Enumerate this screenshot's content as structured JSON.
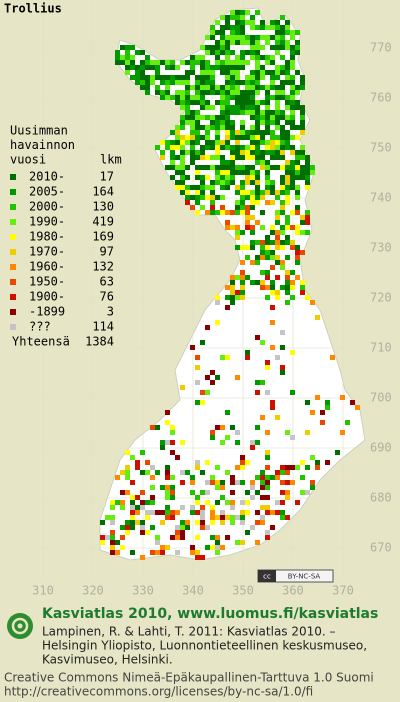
{
  "title": "Trollius",
  "legend": {
    "heading": [
      "Uusimman",
      "havainnon",
      "vuosi"
    ],
    "count_heading": "lkm",
    "entries": [
      {
        "label": "2010-",
        "count": 17,
        "color": "#006e00"
      },
      {
        "label": "2005-",
        "count": 164,
        "color": "#009a00"
      },
      {
        "label": "2000-",
        "count": 130,
        "color": "#22c400"
      },
      {
        "label": "1990-",
        "count": 419,
        "color": "#66ee11"
      },
      {
        "label": "1980-",
        "count": 169,
        "color": "#ffff00"
      },
      {
        "label": "1970-",
        "count": 97,
        "color": "#f0cc00"
      },
      {
        "label": "1960-",
        "count": 132,
        "color": "#ff8800"
      },
      {
        "label": "1950-",
        "count": 63,
        "color": "#e84800"
      },
      {
        "label": "1900-",
        "count": 76,
        "color": "#cc1100"
      },
      {
        "label": "-1899",
        "count": 3,
        "color": "#880000"
      },
      {
        "label": "???",
        "count": 114,
        "color": "#c4c4c4"
      }
    ],
    "total_label": "Yhteensä",
    "total": 1384
  },
  "y_ticks": [
    770,
    760,
    750,
    740,
    730,
    720,
    710,
    700,
    690,
    680,
    670
  ],
  "x_ticks": [
    310,
    320,
    330,
    340,
    350,
    360,
    370
  ],
  "license_badge": "BY-NC-SA",
  "footer": {
    "heading": "Kasviatlas 2010, www.luomus.fi/kasviatlas",
    "citation": [
      "Lampinen, R. & Lahti, T. 2011: Kasviatlas 2010. –",
      "Helsingin Yliopisto, Luonnontieteellinen keskusmuseo,",
      "Kasvimuseo, Helsinki."
    ],
    "license": [
      "Creative Commons Nimeä-Epäkaupallinen-Tarttuva 1.0 Suomi",
      "http://creativecommons.org/licenses/by-nc-sa/1.0/fi"
    ]
  }
}
